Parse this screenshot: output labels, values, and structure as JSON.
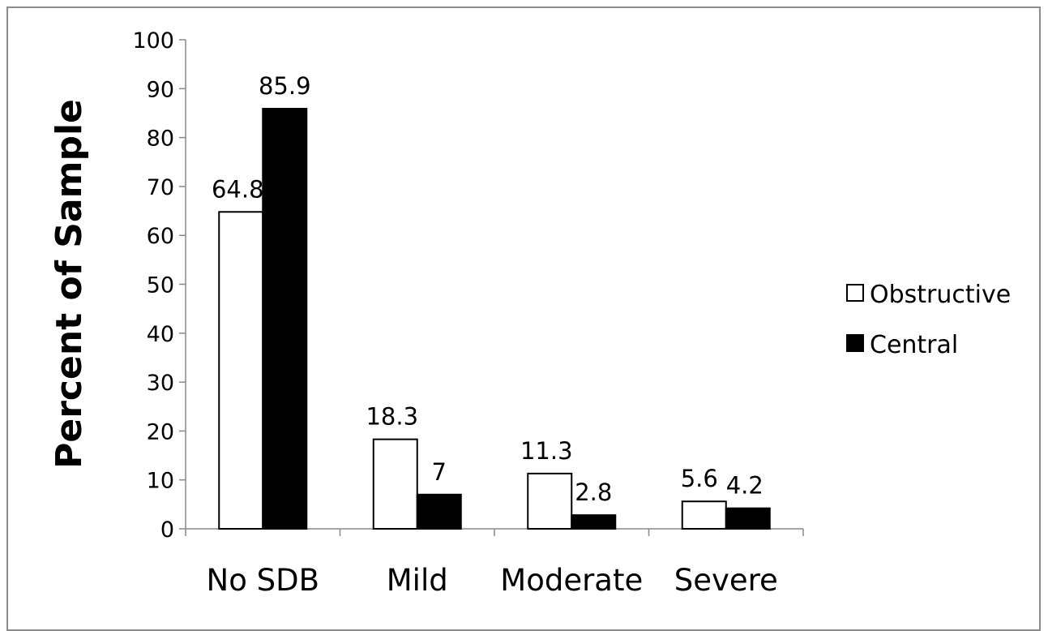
{
  "chart_data": {
    "type": "bar",
    "title": "",
    "xlabel": "",
    "ylabel": "Percent of Sample",
    "ylim": [
      0,
      100
    ],
    "yticks": [
      0,
      10,
      20,
      30,
      40,
      50,
      60,
      70,
      80,
      90,
      100
    ],
    "categories": [
      "No SDB",
      "Mild",
      "Moderate",
      "Severe"
    ],
    "series": [
      {
        "name": "Obstructive",
        "values": [
          64.8,
          18.3,
          11.3,
          5.6
        ],
        "value_labels": [
          "64.8",
          "18.3",
          "11.3",
          "5.6"
        ],
        "fill": "#ffffff",
        "stroke": "#000000"
      },
      {
        "name": "Central",
        "values": [
          85.9,
          7,
          2.8,
          4.2
        ],
        "value_labels": [
          "85.9",
          "7",
          "2.8",
          "4.2"
        ],
        "fill": "#000000",
        "stroke": "#000000"
      }
    ],
    "grid": false,
    "legend_position": "right"
  }
}
